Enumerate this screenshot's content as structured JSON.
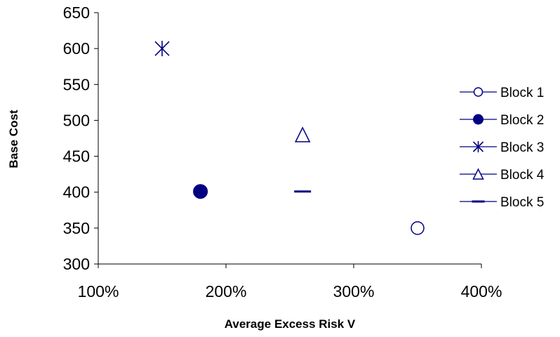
{
  "chart_data": {
    "type": "scatter",
    "title": "",
    "xlabel": "Average Excess Risk V",
    "ylabel": "Base Cost",
    "xlim": [
      100,
      400
    ],
    "ylim": [
      300,
      650
    ],
    "x_ticks": [
      100,
      200,
      300,
      400
    ],
    "x_tick_labels": [
      "100%",
      "200%",
      "300%",
      "400%"
    ],
    "y_ticks": [
      300,
      350,
      400,
      450,
      500,
      550,
      600,
      650
    ],
    "y_tick_labels": [
      "300",
      "350",
      "400",
      "450",
      "500",
      "550",
      "600",
      "650"
    ],
    "grid": false,
    "legend_position": "right",
    "colors": {
      "series": "#000080",
      "axis": "#000000"
    },
    "series": [
      {
        "name": "Block 1",
        "marker": "circle-open",
        "points": [
          {
            "x": 350,
            "y": 350
          }
        ]
      },
      {
        "name": "Block 2",
        "marker": "circle-filled",
        "points": [
          {
            "x": 180,
            "y": 401
          }
        ]
      },
      {
        "name": "Block 3",
        "marker": "asterisk",
        "points": [
          {
            "x": 150,
            "y": 600
          }
        ]
      },
      {
        "name": "Block 4",
        "marker": "triangle-open",
        "points": [
          {
            "x": 260,
            "y": 480
          }
        ]
      },
      {
        "name": "Block 5",
        "marker": "dash",
        "points": [
          {
            "x": 260,
            "y": 401
          }
        ]
      }
    ]
  }
}
